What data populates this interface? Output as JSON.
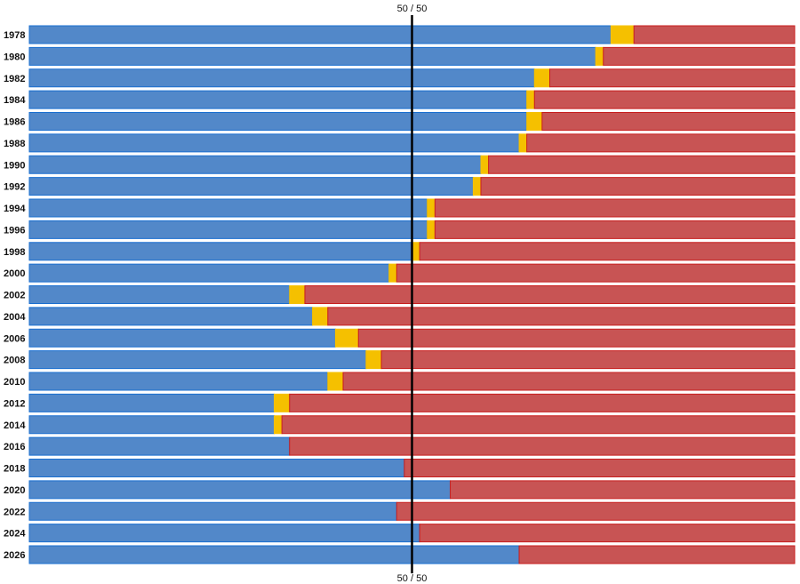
{
  "chart_data": {
    "type": "bar",
    "orientation": "horizontal",
    "stacked": true,
    "normalized": true,
    "xlim": [
      0,
      100
    ],
    "grid": false,
    "legend": "none",
    "reference_line": {
      "value": 50,
      "label_top": "50 / 50",
      "label_bottom": "50 / 50"
    },
    "categories": [
      "1978",
      "1980",
      "1982",
      "1984",
      "1986",
      "1988",
      "1990",
      "1992",
      "1994",
      "1996",
      "1998",
      "2000",
      "2002",
      "2004",
      "2006",
      "2008",
      "2010",
      "2012",
      "2014",
      "2016",
      "2018",
      "2020",
      "2022",
      "2024",
      "2026"
    ],
    "series": [
      {
        "color": "#5288c9",
        "values": [
          76,
          74,
          66,
          65,
          65,
          64,
          59,
          58,
          52,
          52,
          50,
          47,
          34,
          37,
          40,
          44,
          39,
          32,
          32,
          34,
          49,
          55,
          48,
          51,
          64
        ]
      },
      {
        "color": "#f5c000",
        "values": [
          3,
          1,
          2,
          1,
          2,
          1,
          1,
          1,
          1,
          1,
          1,
          1,
          2,
          2,
          3,
          2,
          2,
          2,
          1,
          0,
          0,
          0,
          0,
          0,
          0
        ]
      },
      {
        "color": "#c85454",
        "values": [
          21,
          25,
          32,
          34,
          33,
          35,
          40,
          41,
          47,
          47,
          49,
          52,
          64,
          61,
          57,
          54,
          59,
          66,
          67,
          66,
          51,
          45,
          52,
          49,
          36
        ]
      }
    ]
  }
}
